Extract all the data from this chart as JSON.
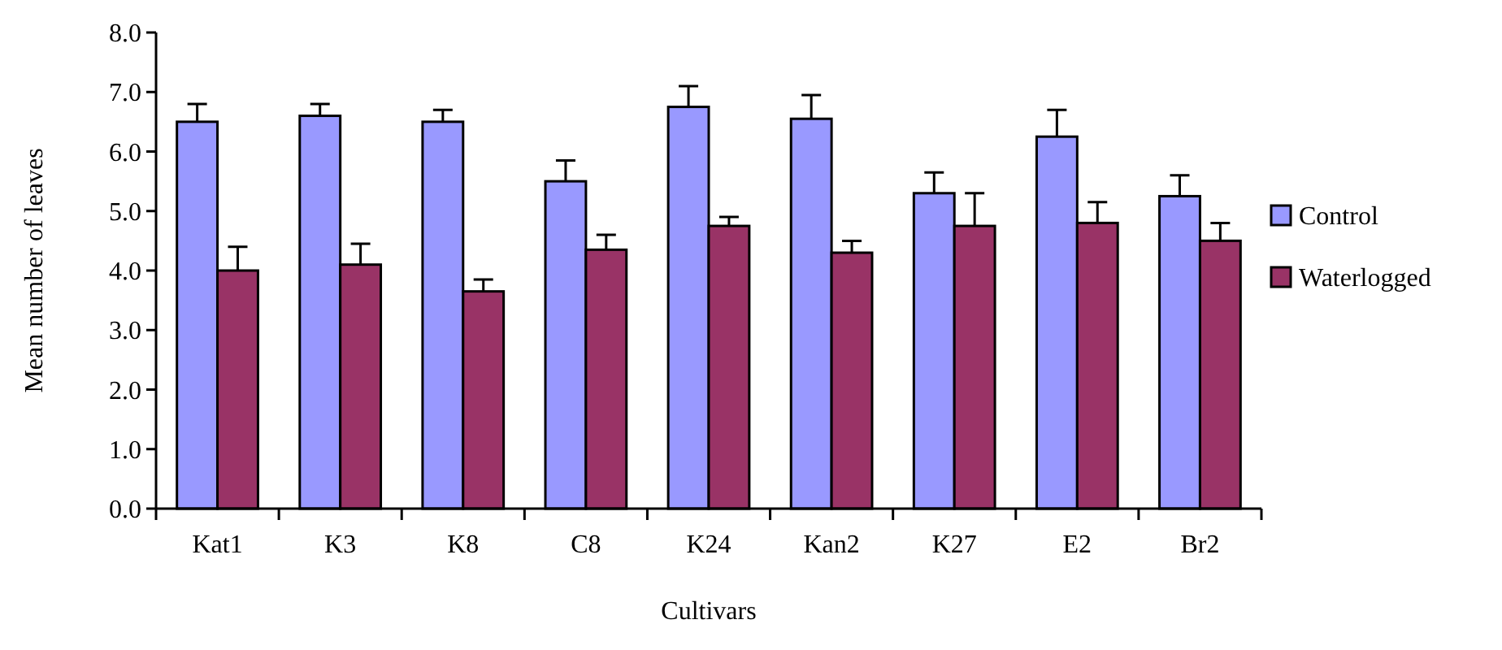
{
  "chart_data": {
    "type": "bar",
    "xlabel": "Cultivars",
    "ylabel": "Mean number of leaves",
    "categories": [
      "Kat1",
      "K3",
      "K8",
      "C8",
      "K24",
      "Kan2",
      "K27",
      "E2",
      "Br2"
    ],
    "series": [
      {
        "name": "Control",
        "color": "#9999ff",
        "values": [
          6.5,
          6.6,
          6.5,
          5.5,
          6.75,
          6.55,
          5.3,
          6.25,
          5.25
        ],
        "errors": [
          0.3,
          0.2,
          0.2,
          0.35,
          0.35,
          0.4,
          0.35,
          0.45,
          0.35
        ]
      },
      {
        "name": "Waterlogged",
        "color": "#993366",
        "values": [
          4.0,
          4.1,
          3.65,
          4.35,
          4.75,
          4.3,
          4.75,
          4.8,
          4.5
        ],
        "errors": [
          0.4,
          0.35,
          0.2,
          0.25,
          0.15,
          0.2,
          0.55,
          0.35,
          0.3
        ]
      }
    ],
    "ylim": [
      0,
      8
    ],
    "yticks": [
      {
        "value": 0,
        "label": "0.0"
      },
      {
        "value": 1,
        "label": "1.0"
      },
      {
        "value": 2,
        "label": "2.0"
      },
      {
        "value": 3,
        "label": "3.0"
      },
      {
        "value": 4,
        "label": "4.0"
      },
      {
        "value": 5,
        "label": "5.0"
      },
      {
        "value": 6,
        "label": "6.0"
      },
      {
        "value": 7,
        "label": "7.0"
      },
      {
        "value": 8,
        "label": "8.0"
      }
    ],
    "grid": false,
    "legend": "right"
  }
}
